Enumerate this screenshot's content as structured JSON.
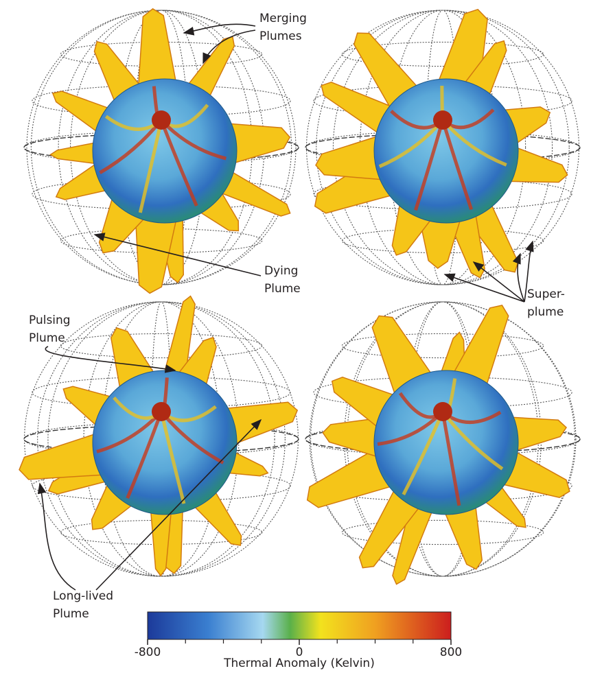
{
  "annotations": [
    {
      "lines": [
        "Merging",
        "Plumes"
      ]
    },
    {
      "lines": [
        "Dying",
        "Plume"
      ]
    },
    {
      "lines": [
        "Super-",
        "plume"
      ]
    },
    {
      "lines": [
        "Pulsing",
        "Plume"
      ]
    },
    {
      "lines": [
        "Long-lived",
        "Plume"
      ]
    }
  ],
  "colorbar": {
    "label": "Thermal Anomaly (Kelvin)",
    "lim": [
      -800,
      800
    ],
    "ticks": [
      -800,
      0,
      800
    ],
    "minor_ticks": [
      -600,
      -400,
      -200,
      200,
      400,
      600
    ]
  }
}
